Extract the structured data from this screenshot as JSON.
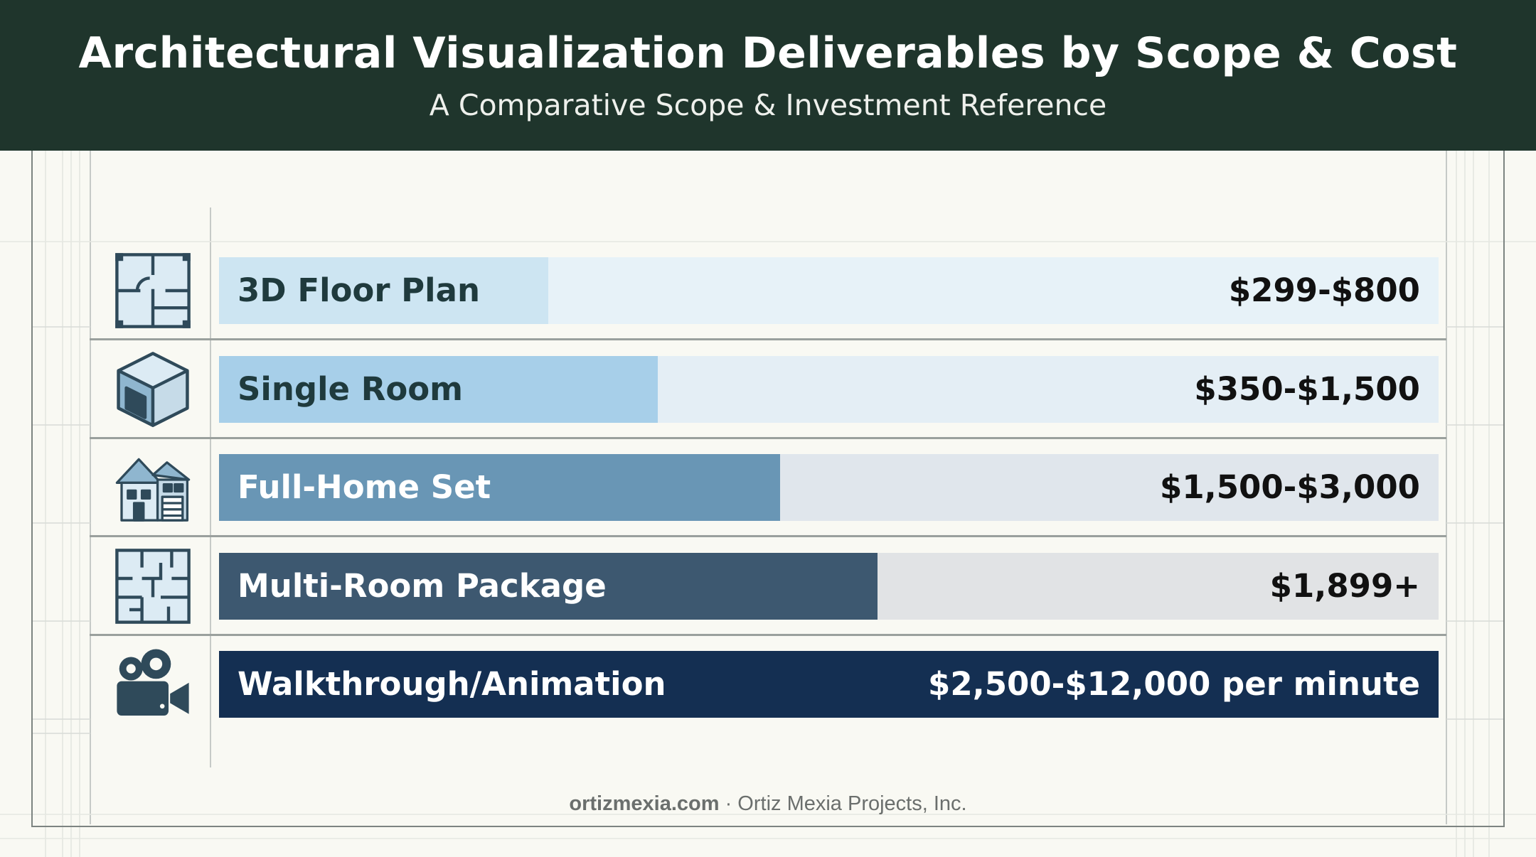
{
  "header": {
    "title": "Architectural Visualization Deliverables by Scope & Cost",
    "subtitle": "A Comparative Scope & Investment Reference"
  },
  "chart_data": {
    "type": "bar",
    "orientation": "horizontal",
    "title": "Architectural Visualization Deliverables by Scope & Cost",
    "subtitle": "A Comparative Scope & Investment Reference",
    "categories": [
      "3D Floor Plan",
      "Single Room",
      "Full-Home Set",
      "Multi-Room Package",
      "Walkthrough/Animation"
    ],
    "values": [
      0.27,
      0.36,
      0.46,
      0.54,
      1.0
    ],
    "value_labels": [
      "$299-$800",
      "$350-$1,500",
      "$1,500-$3,000",
      "$1,899+",
      "$2,500-$12,000 per minute"
    ],
    "bar_colors": [
      "#cde5f2",
      "#a7cfe9",
      "#6996b5",
      "#3d5870",
      "#142f52"
    ],
    "track_colors": [
      "#e7f2f8",
      "#e4eef5",
      "#e0e6ec",
      "#e1e3e5",
      "#142f52"
    ],
    "label_colors": [
      "#1f3a3d",
      "#1f3a3d",
      "#ffffff",
      "#ffffff",
      "#ffffff"
    ],
    "value_colors": [
      "#111111",
      "#111111",
      "#111111",
      "#111111",
      "#ffffff"
    ],
    "icons": [
      "floor-plan-icon",
      "room-cube-icon",
      "house-icon",
      "multi-room-plan-icon",
      "movie-camera-icon"
    ],
    "xlabel": "",
    "ylabel": "",
    "grid": true,
    "legend": "none"
  },
  "footer": {
    "site": "ortizmexia.com",
    "separator": " · ",
    "company": "Ortiz Mexia Projects, Inc."
  }
}
